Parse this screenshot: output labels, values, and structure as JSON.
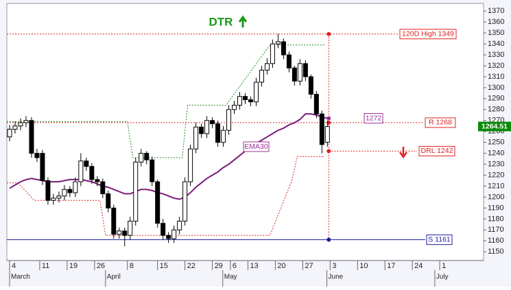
{
  "chart_data": {
    "type": "candlestick",
    "title": "DTR",
    "x": [
      0.5,
      1.5,
      2.5,
      3.5,
      4.5,
      5.5,
      6.5,
      7.5,
      8.5,
      9.5,
      10.5,
      11.5,
      12.5,
      13.5,
      14.5,
      15.5,
      16.5,
      17.5,
      18.5,
      19.5,
      20.5,
      21.5,
      22.5,
      23.5,
      24.5,
      25.5,
      26.5,
      27.5,
      28.5,
      29.5,
      30.5,
      31.5,
      32.5,
      33.5,
      34.5,
      35.5,
      36.5,
      37.5,
      38.5,
      39.5,
      40.5,
      41.5,
      42.5,
      43.5,
      44.5,
      45.5,
      46.5,
      47.5,
      48.5,
      49.5,
      50.5,
      51.5,
      52.5,
      53.5,
      54.5,
      55.5,
      56.5,
      57.5,
      58.5
    ],
    "open": [
      1255,
      1262,
      1265,
      1268,
      1270,
      1240,
      1240,
      1215,
      1197,
      1199,
      1201,
      1207,
      1204,
      1214,
      1233,
      1228,
      1216,
      1214,
      1203,
      1190,
      1166,
      1169,
      1165,
      1178,
      1232,
      1240,
      1234,
      1214,
      1176,
      1165,
      1162,
      1170,
      1178,
      1214,
      1244,
      1264,
      1258,
      1270,
      1267,
      1250,
      1261,
      1280,
      1284,
      1292,
      1289,
      1287,
      1305,
      1316,
      1322,
      1340,
      1342,
      1330,
      1318,
      1306,
      1322,
      1310,
      1294,
      1276,
      1250
    ],
    "high": [
      1266,
      1269,
      1272,
      1274,
      1273,
      1244,
      1243,
      1218,
      1203,
      1205,
      1211,
      1210,
      1218,
      1240,
      1236,
      1231,
      1219,
      1217,
      1206,
      1193,
      1172,
      1172,
      1182,
      1236,
      1244,
      1242,
      1237,
      1216,
      1180,
      1168,
      1174,
      1182,
      1218,
      1248,
      1268,
      1267,
      1274,
      1273,
      1270,
      1265,
      1284,
      1288,
      1296,
      1295,
      1292,
      1309,
      1320,
      1327,
      1344,
      1349,
      1345,
      1333,
      1320,
      1326,
      1325,
      1312,
      1297,
      1279,
      1270
    ],
    "low": [
      1251,
      1258,
      1261,
      1264,
      1236,
      1232,
      1211,
      1193,
      1193,
      1195,
      1197,
      1200,
      1200,
      1210,
      1224,
      1212,
      1210,
      1199,
      1186,
      1162,
      1162,
      1155,
      1161,
      1174,
      1228,
      1230,
      1210,
      1172,
      1161,
      1158,
      1158,
      1166,
      1174,
      1210,
      1240,
      1254,
      1254,
      1263,
      1246,
      1246,
      1257,
      1276,
      1280,
      1285,
      1283,
      1283,
      1301,
      1312,
      1318,
      1336,
      1326,
      1314,
      1302,
      1302,
      1306,
      1290,
      1272,
      1240,
      1246
    ],
    "close": [
      1262,
      1265,
      1268,
      1270,
      1240,
      1236,
      1215,
      1197,
      1199,
      1201,
      1207,
      1204,
      1214,
      1233,
      1228,
      1216,
      1214,
      1203,
      1190,
      1166,
      1169,
      1165,
      1178,
      1232,
      1240,
      1234,
      1214,
      1176,
      1165,
      1162,
      1170,
      1178,
      1214,
      1244,
      1264,
      1258,
      1270,
      1267,
      1250,
      1261,
      1280,
      1284,
      1292,
      1289,
      1287,
      1305,
      1316,
      1322,
      1340,
      1342,
      1330,
      1318,
      1306,
      1322,
      1310,
      1294,
      1276,
      1248,
      1264.51
    ],
    "ema": {
      "name": "EMA30",
      "color": "#7a1a7a",
      "values": [
        1208,
        1211,
        1214,
        1216,
        1217,
        1216,
        1215,
        1214,
        1214,
        1214,
        1215,
        1216,
        1216,
        1216,
        1215,
        1214,
        1212,
        1210,
        1209,
        1207,
        1205,
        1203,
        1203,
        1205,
        1207,
        1207,
        1206,
        1204,
        1203,
        1201,
        1199,
        1198,
        1200,
        1204,
        1209,
        1213,
        1217,
        1220,
        1223,
        1227,
        1230,
        1234,
        1238,
        1242,
        1245,
        1249,
        1252,
        1255,
        1258,
        1261,
        1263,
        1266,
        1268,
        1271,
        1276,
        1276,
        1275,
        1273,
        1272
      ]
    },
    "trails": [
      {
        "color": "#1a8a1a",
        "x": [
          0,
          22,
          23,
          32,
          33,
          40,
          48,
          58
        ],
        "values": [
          1269,
          1269,
          1236,
          1236,
          1284,
          1284,
          1339,
          1339
        ]
      },
      {
        "color": "#e02020",
        "x": [
          0,
          2,
          5,
          17,
          18,
          48,
          52,
          53,
          58
        ],
        "values": [
          1213,
          1213,
          1197,
          1197,
          1165,
          1165,
          1215,
          1237,
          1237
        ]
      }
    ],
    "levels": [
      {
        "label": "120D High 1349",
        "value": 1349,
        "color": "#e02020",
        "style": "dotted"
      },
      {
        "label": "R 1268",
        "value": 1268,
        "color": "#e02020",
        "style": "dotted"
      },
      {
        "label": "1272",
        "value": 1272,
        "color": "#993399"
      },
      {
        "label": "DRL 1242",
        "value": 1242,
        "color": "#e02020",
        "style": "dotted"
      },
      {
        "label": "S 1161",
        "value": 1161,
        "color": "#1a1aa0",
        "style": "solid"
      }
    ],
    "marker_x": 58.75,
    "xlim": [
      0,
      87
    ],
    "ylim": [
      1142,
      1377
    ],
    "yticks": [
      1150,
      1160,
      1170,
      1180,
      1190,
      1200,
      1210,
      1220,
      1230,
      1240,
      1250,
      1260,
      1270,
      1280,
      1290,
      1300,
      1310,
      1320,
      1330,
      1340,
      1350,
      1360,
      1370
    ],
    "xticks": [
      {
        "value": 0.5,
        "label": "4"
      },
      {
        "value": 6,
        "label": "11"
      },
      {
        "value": 11,
        "label": "19"
      },
      {
        "value": 16,
        "label": "26"
      },
      {
        "value": 22,
        "label": "8"
      },
      {
        "value": 27.5,
        "label": "15"
      },
      {
        "value": 32.5,
        "label": "22"
      },
      {
        "value": 37.5,
        "label": "29"
      },
      {
        "value": 40.8,
        "label": "6"
      },
      {
        "value": 44,
        "label": "13"
      },
      {
        "value": 49,
        "label": "20"
      },
      {
        "value": 54,
        "label": "27"
      },
      {
        "value": 59,
        "label": "3"
      },
      {
        "value": 64,
        "label": "10"
      },
      {
        "value": 69,
        "label": "17"
      },
      {
        "value": 74,
        "label": "24"
      },
      {
        "value": 79,
        "label": "1"
      }
    ],
    "months": [
      {
        "value": 0.5,
        "label": "March"
      },
      {
        "value": 18,
        "label": "April"
      },
      {
        "value": 39.4,
        "label": "May"
      },
      {
        "value": 58.4,
        "label": "June"
      },
      {
        "value": 78.1,
        "label": "July"
      }
    ]
  }
}
